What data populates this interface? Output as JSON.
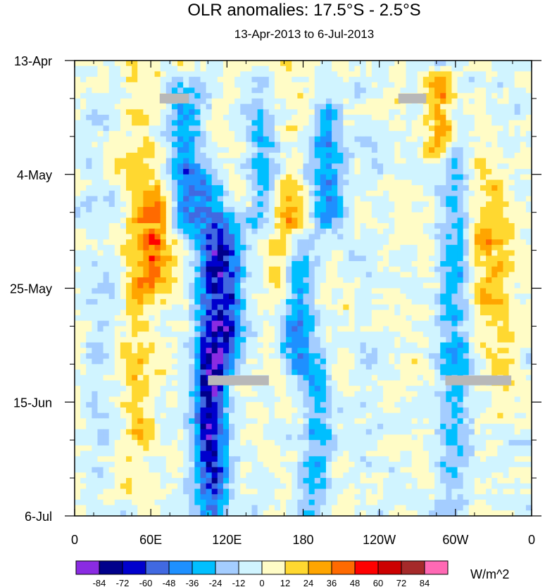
{
  "chart_data": {
    "type": "heatmap",
    "title": "OLR anomalies: 17.5°S - 2.5°S",
    "subtitle": "13-Apr-2013 to 6-Jul-2013",
    "x_axis": {
      "tick_labels": [
        "0",
        "60E",
        "120E",
        "180",
        "120W",
        "60W",
        "0"
      ],
      "range": [
        0,
        360
      ],
      "units": "degrees longitude"
    },
    "y_axis": {
      "tick_labels": [
        "13-Apr",
        "4-May",
        "25-May",
        "15-Jun",
        "6-Jul"
      ],
      "range": [
        "2013-04-13",
        "2013-07-06"
      ],
      "reversed": true
    },
    "colorbar": {
      "units_label": "W/m^2",
      "levels": [
        "-84",
        "-72",
        "-60",
        "-48",
        "-36",
        "-24",
        "-12",
        "0",
        "12",
        "24",
        "36",
        "48",
        "60",
        "72",
        "84"
      ],
      "colors": [
        "#8a2be2",
        "#00008b",
        "#0000cd",
        "#4169e1",
        "#1e90ff",
        "#00bfff",
        "#a4cdff",
        "#d0f4ff",
        "#fffcc6",
        "#ffd830",
        "#ffa500",
        "#ff6a00",
        "#ff0000",
        "#cc0000",
        "#a52a2a",
        "#ff69b4"
      ],
      "placement": "bottom"
    },
    "bands": [
      {
        "lon": 20,
        "days": [
          0,
          84
        ],
        "anomaly": -10
      },
      {
        "lon": 50,
        "days": [
          0,
          84
        ],
        "anomaly": 18
      },
      {
        "lon": 65,
        "days": [
          25,
          40
        ],
        "anomaly": 30
      },
      {
        "lon": 88,
        "days": [
          5,
          30
        ],
        "anomaly": -40
      },
      {
        "lon": 105,
        "days": [
          20,
          84
        ],
        "anomaly": -45
      },
      {
        "lon": 120,
        "days": [
          30,
          55
        ],
        "anomaly": -55
      },
      {
        "lon": 110,
        "days": [
          55,
          84
        ],
        "anomaly": -35
      },
      {
        "lon": 150,
        "days": [
          5,
          30
        ],
        "anomaly": -40
      },
      {
        "lon": 165,
        "days": [
          25,
          45
        ],
        "anomaly": 30
      },
      {
        "lon": 175,
        "days": [
          35,
          55
        ],
        "anomaly": -45
      },
      {
        "lon": 200,
        "days": [
          10,
          30
        ],
        "anomaly": -40
      },
      {
        "lon": 190,
        "days": [
          55,
          84
        ],
        "anomaly": -25
      },
      {
        "lon": 155,
        "days": [
          0,
          25
        ],
        "anomaly": 20
      },
      {
        "lon": 230,
        "days": [
          0,
          84
        ],
        "anomaly": -8
      },
      {
        "lon": 290,
        "days": [
          5,
          15
        ],
        "anomaly": 42
      },
      {
        "lon": 300,
        "days": [
          0,
          84
        ],
        "anomaly": -30
      },
      {
        "lon": 315,
        "days": [
          10,
          50
        ],
        "anomaly": 15
      },
      {
        "lon": 335,
        "days": [
          20,
          60
        ],
        "anomaly": 20
      }
    ],
    "missing_segments": [
      {
        "lon": [
          67,
          90
        ],
        "day": 7
      },
      {
        "lon": [
          255,
          277
        ],
        "day": 7
      },
      {
        "lon": [
          105,
          153
        ],
        "day": 59
      },
      {
        "lon": [
          292,
          344
        ],
        "day": 59
      }
    ]
  }
}
